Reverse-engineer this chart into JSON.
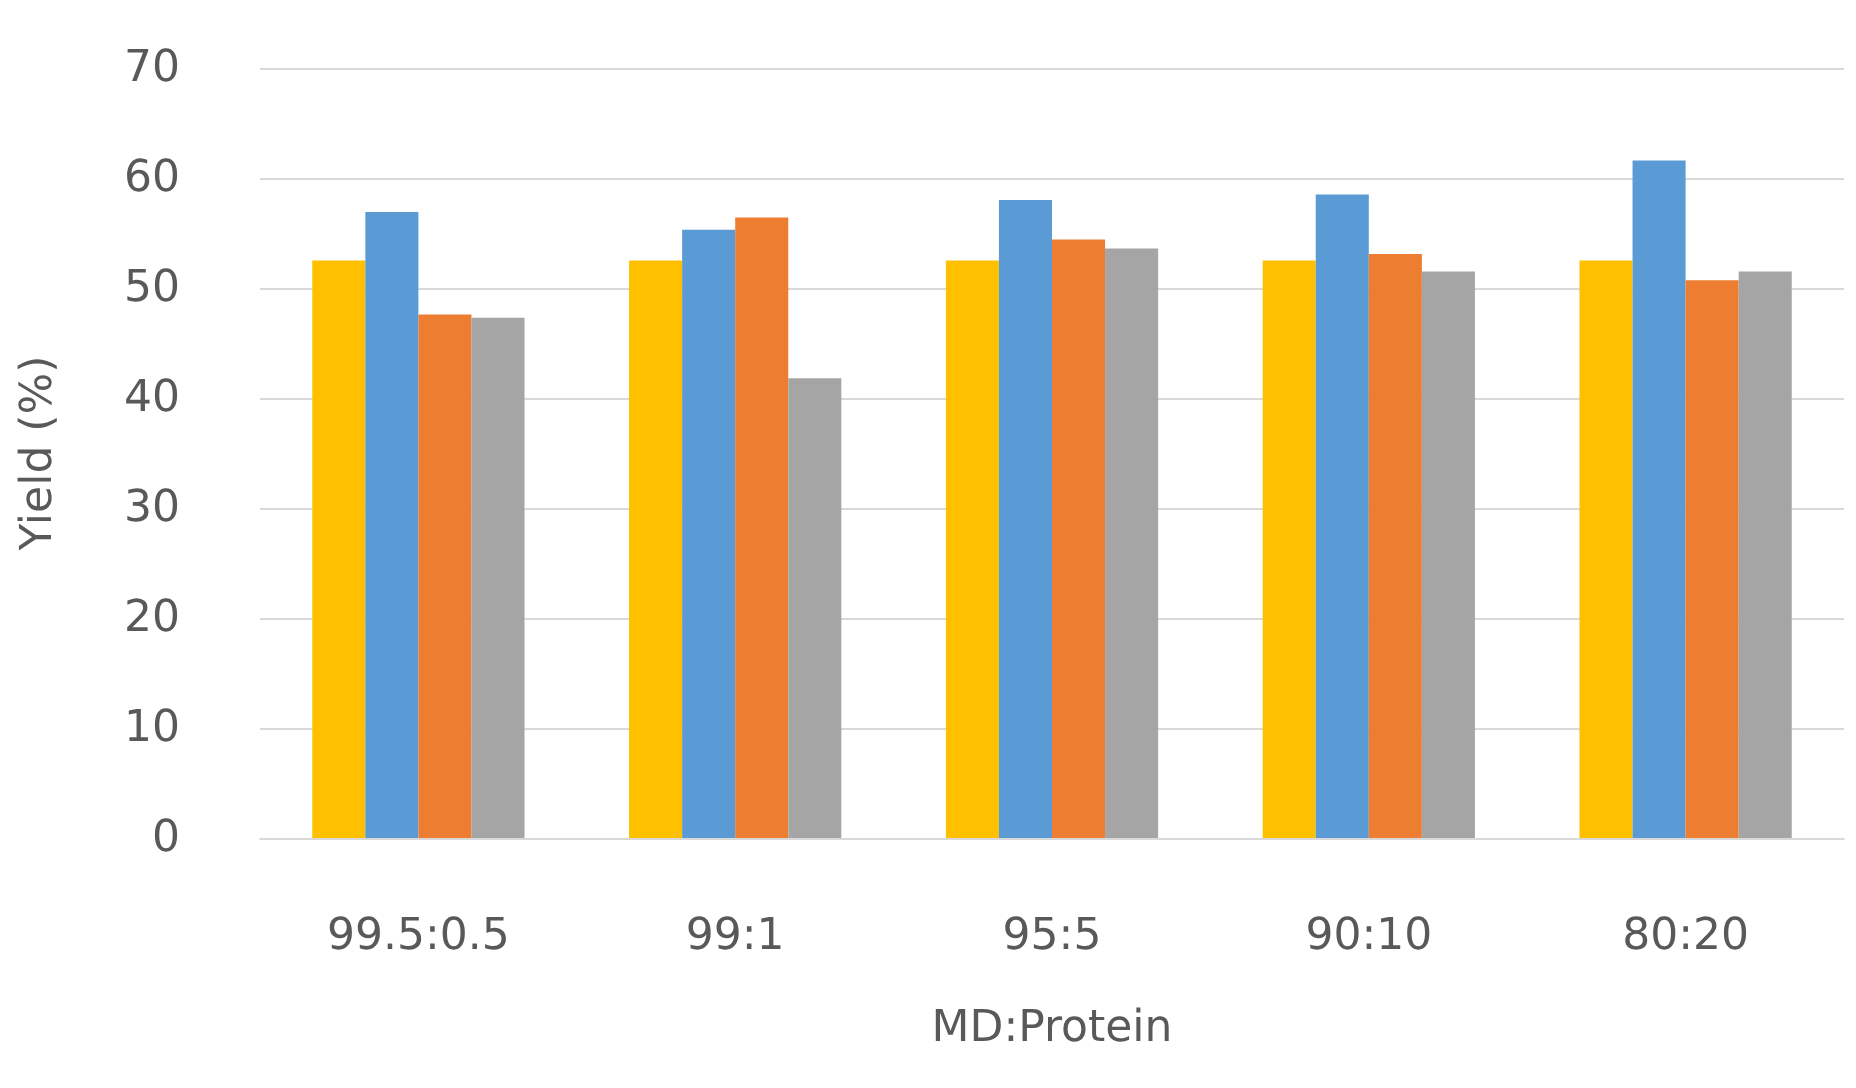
{
  "chart_data": {
    "type": "bar",
    "xlabel": "MD:Protein",
    "ylabel": "Yield (%)",
    "categories": [
      "99.5:0.5",
      "99:1",
      "95:5",
      "90:10",
      "80:20"
    ],
    "series": [
      {
        "color": "#ffc000",
        "values": [
          52.5,
          52.5,
          52.5,
          52.5,
          52.5
        ]
      },
      {
        "color": "#5b9bd5",
        "values": [
          56.9,
          55.3,
          58.0,
          58.5,
          61.6
        ]
      },
      {
        "color": "#ed7d31",
        "values": [
          47.6,
          56.4,
          54.4,
          53.1,
          50.7
        ]
      },
      {
        "color": "#a5a5a5",
        "values": [
          47.3,
          41.8,
          53.6,
          51.5,
          51.5
        ]
      }
    ],
    "ylim": [
      0,
      70
    ],
    "yticks": [
      0,
      10,
      20,
      30,
      40,
      50,
      60,
      70
    ],
    "grid": "y"
  }
}
